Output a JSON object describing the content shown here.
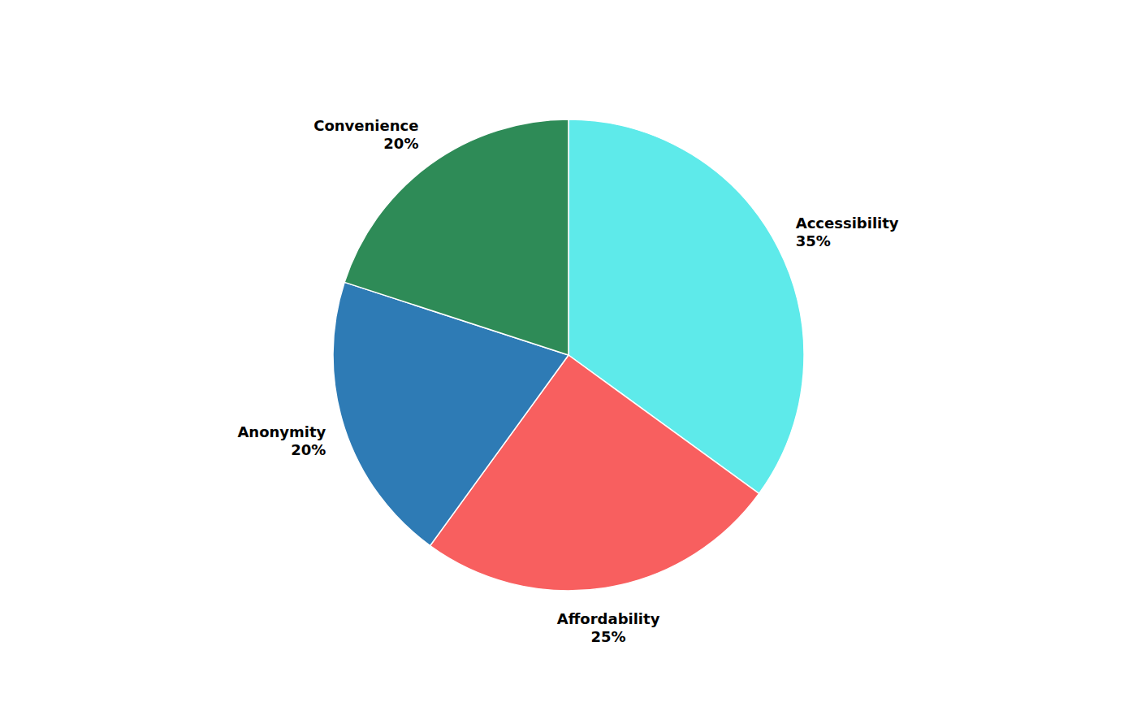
{
  "chart_data": {
    "type": "pie",
    "categories": [
      "Accessibility",
      "Affordability",
      "Anonymity",
      "Convenience"
    ],
    "values": [
      35,
      25,
      20,
      20
    ],
    "value_labels": [
      "35%",
      "25%",
      "20%",
      "20%"
    ],
    "colors": [
      "#5EEAEA",
      "#F85F5F",
      "#2E7BB5",
      "#2E8B57"
    ],
    "data_labels": true
  }
}
